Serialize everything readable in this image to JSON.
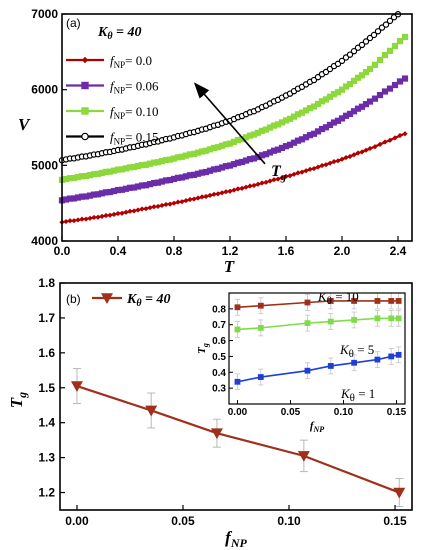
{
  "chart_data": [
    {
      "type": "line",
      "panel_label": "(a)",
      "legend_title": "Kθ = 40",
      "legend_title_parts": {
        "sym": "K",
        "sub": "θ",
        "rest": " = 40"
      },
      "xlabel": "T",
      "ylabel": "V",
      "xlim": [
        0.0,
        2.5
      ],
      "ylim": [
        4000,
        7000
      ],
      "xticks": [
        "0.0",
        "0.4",
        "0.8",
        "1.2",
        "1.6",
        "2.0",
        "2.4"
      ],
      "yticks": [
        "4000",
        "5000",
        "6000",
        "7000"
      ],
      "legend_placement": "top-left",
      "annotation": {
        "text": "Tg",
        "sym": "T",
        "sub": "g",
        "arrow_from": [
          1.45,
          5020
        ],
        "arrow_to": [
          0.95,
          6080
        ]
      },
      "series": [
        {
          "name": "fNP= 0.0",
          "name_sym": "f",
          "name_sub": "NP",
          "name_val": "= 0.0",
          "color": "#b00000",
          "marker": "diamond",
          "x": [
            0.0,
            0.2,
            0.4,
            0.6,
            0.8,
            1.0,
            1.2,
            1.4,
            1.6,
            1.8,
            2.0,
            2.2,
            2.45
          ],
          "y": [
            4250,
            4300,
            4360,
            4430,
            4500,
            4580,
            4660,
            4750,
            4850,
            4960,
            5080,
            5220,
            5420
          ]
        },
        {
          "name": "fNP= 0.06",
          "name_sym": "f",
          "name_sub": "NP",
          "name_val": "= 0.06",
          "color": "#6a2ca8",
          "marker": "square",
          "x": [
            0.0,
            0.2,
            0.4,
            0.6,
            0.8,
            1.0,
            1.2,
            1.4,
            1.6,
            1.8,
            2.0,
            2.2,
            2.45
          ],
          "y": [
            4540,
            4600,
            4670,
            4740,
            4820,
            4900,
            5000,
            5110,
            5250,
            5420,
            5620,
            5840,
            6150
          ]
        },
        {
          "name": "fNP= 0.10",
          "name_sym": "f",
          "name_sub": "NP",
          "name_val": "= 0.10",
          "color": "#8dd83a",
          "marker": "square",
          "x": [
            0.0,
            0.2,
            0.4,
            0.6,
            0.8,
            1.0,
            1.2,
            1.4,
            1.6,
            1.8,
            2.0,
            2.2,
            2.45
          ],
          "y": [
            4810,
            4870,
            4940,
            5010,
            5090,
            5180,
            5290,
            5430,
            5590,
            5780,
            6000,
            6270,
            6700
          ]
        },
        {
          "name": "fNP= 0.15",
          "name_sym": "f",
          "name_sub": "NP",
          "name_val": "= 0.15",
          "color": "#000000",
          "marker": "circle",
          "x": [
            0.0,
            0.2,
            0.4,
            0.6,
            0.8,
            1.0,
            1.2,
            1.4,
            1.6,
            1.8,
            2.0,
            2.2,
            2.4
          ],
          "y": [
            5070,
            5130,
            5200,
            5280,
            5370,
            5470,
            5590,
            5740,
            5920,
            6130,
            6380,
            6680,
            7000
          ]
        }
      ]
    },
    {
      "type": "line",
      "panel_label": "(b)",
      "legend_title": "Kθ = 40",
      "legend_title_parts": {
        "sym": "K",
        "sub": "θ",
        "rest": " = 40"
      },
      "xlabel": "fNP",
      "xlabel_parts": {
        "sym": "f",
        "sub": "NP"
      },
      "ylabel": "Tg",
      "ylabel_parts": {
        "sym": "T",
        "sub": "g"
      },
      "xlim": [
        -0.008,
        0.158
      ],
      "ylim": [
        1.15,
        1.8
      ],
      "xticks": [
        "0.00",
        "0.05",
        "0.10",
        "0.15"
      ],
      "yticks": [
        "1.2",
        "1.3",
        "1.4",
        "1.5",
        "1.6",
        "1.7",
        "1.8"
      ],
      "legend_placement": "top-left",
      "series": [
        {
          "name": "Kθ = 40",
          "color": "#a0301c",
          "marker": "triangle-down",
          "x": [
            0.0,
            0.035,
            0.066,
            0.107,
            0.152
          ],
          "y": [
            1.505,
            1.435,
            1.37,
            1.305,
            1.2
          ],
          "err": [
            0.05,
            0.05,
            0.04,
            0.045,
            0.04
          ]
        }
      ]
    },
    {
      "type": "line",
      "panel_label": "inset",
      "xlabel": "fNP",
      "xlabel_parts": {
        "sym": "f",
        "sub": "NP"
      },
      "ylabel": "Tg",
      "ylabel_parts": {
        "sym": "T",
        "sub": "g"
      },
      "xlim": [
        -0.008,
        0.158
      ],
      "ylim": [
        0.2,
        0.9
      ],
      "xticks": [
        "0.00",
        "0.05",
        "0.10",
        "0.15"
      ],
      "yticks": [
        "0.3",
        "0.4",
        "0.5",
        "0.6",
        "0.7",
        "0.8"
      ],
      "series": [
        {
          "name": "Kθ = 10",
          "label_parts": {
            "sym": "K",
            "sub": "θ",
            "rest": " = 10"
          },
          "color": "#a0301c",
          "marker": "square",
          "x": [
            0.0,
            0.022,
            0.066,
            0.088,
            0.11,
            0.132,
            0.145,
            0.152
          ],
          "y": [
            0.81,
            0.82,
            0.84,
            0.85,
            0.85,
            0.85,
            0.85,
            0.85
          ],
          "err": [
            0.05,
            0.05,
            0.05,
            0.05,
            0.05,
            0.05,
            0.05,
            0.05
          ]
        },
        {
          "name": "Kθ = 5",
          "label_parts": {
            "sym": "K",
            "sub": "θ",
            "rest": " = 5"
          },
          "color": "#7fdc49",
          "marker": "square",
          "x": [
            0.0,
            0.022,
            0.066,
            0.088,
            0.11,
            0.132,
            0.145,
            0.152
          ],
          "y": [
            0.67,
            0.68,
            0.71,
            0.72,
            0.73,
            0.74,
            0.74,
            0.74
          ],
          "err": [
            0.05,
            0.05,
            0.05,
            0.05,
            0.05,
            0.05,
            0.05,
            0.05
          ]
        },
        {
          "name": "Kθ = 1",
          "label_parts": {
            "sym": "K",
            "sub": "θ",
            "rest": " = 1"
          },
          "color": "#1f3fd6",
          "marker": "square",
          "x": [
            0.0,
            0.022,
            0.066,
            0.088,
            0.11,
            0.132,
            0.145,
            0.152
          ],
          "y": [
            0.34,
            0.37,
            0.41,
            0.44,
            0.46,
            0.48,
            0.5,
            0.51
          ],
          "err": [
            0.05,
            0.05,
            0.05,
            0.05,
            0.05,
            0.05,
            0.05,
            0.05
          ]
        }
      ]
    }
  ]
}
